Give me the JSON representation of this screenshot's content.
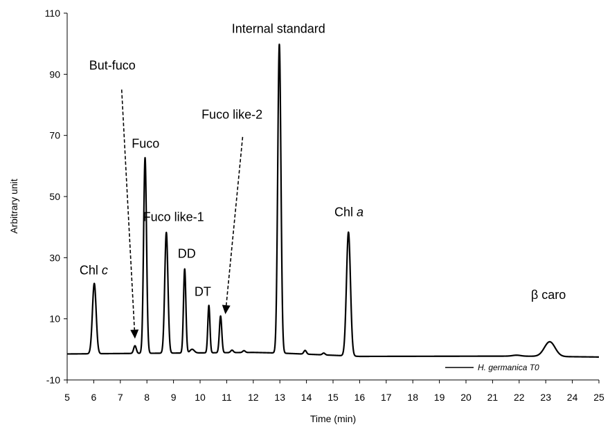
{
  "chart_data": {
    "type": "line",
    "xlabel": "Time  (min)",
    "ylabel": "Arbitrary unit",
    "xlim": [
      5,
      25
    ],
    "ylim": [
      -10,
      110
    ],
    "xticks": [
      5,
      6,
      7,
      8,
      9,
      10,
      11,
      12,
      13,
      14,
      15,
      16,
      17,
      18,
      19,
      20,
      21,
      22,
      23,
      24,
      25
    ],
    "yticks": [
      -10,
      10,
      30,
      50,
      70,
      90,
      110
    ],
    "grid": false,
    "legend_position": "bottom-right",
    "series": [
      {
        "name": "H. germanica T0",
        "color": "#000000",
        "baseline": [
          [
            5,
            -1.5
          ],
          [
            12,
            -1.0
          ],
          [
            13,
            -1.2
          ],
          [
            16,
            -2.3
          ],
          [
            22,
            -2.2
          ],
          [
            25,
            -2.5
          ]
        ],
        "peaks": [
          {
            "x": 6.02,
            "h": 23.0,
            "w": 0.07
          },
          {
            "x": 7.55,
            "h": 2.5,
            "w": 0.05
          },
          {
            "x": 7.93,
            "h": 64.0,
            "w": 0.055
          },
          {
            "x": 8.73,
            "h": 39.5,
            "w": 0.06
          },
          {
            "x": 9.42,
            "h": 27.5,
            "w": 0.045
          },
          {
            "x": 9.7,
            "h": 1.2,
            "w": 0.08
          },
          {
            "x": 10.33,
            "h": 15.5,
            "w": 0.04
          },
          {
            "x": 10.77,
            "h": 12.0,
            "w": 0.045
          },
          {
            "x": 11.2,
            "h": 0.8,
            "w": 0.05
          },
          {
            "x": 11.65,
            "h": 0.6,
            "w": 0.05
          },
          {
            "x": 12.98,
            "h": 101.0,
            "w": 0.06
          },
          {
            "x": 13.95,
            "h": 1.2,
            "w": 0.05
          },
          {
            "x": 14.65,
            "h": 0.6,
            "w": 0.05
          },
          {
            "x": 15.58,
            "h": 40.5,
            "w": 0.075
          },
          {
            "x": 21.9,
            "h": 0.3,
            "w": 0.15
          },
          {
            "x": 23.15,
            "h": 4.8,
            "w": 0.2
          }
        ]
      }
    ],
    "annotations": [
      {
        "label": "Chl",
        "italic_suffix": "c",
        "x": 6.0,
        "y": 24.5
      },
      {
        "label": "But-fuco",
        "x": 6.7,
        "y": 91.5,
        "arrow_from": [
          7.05,
          85
        ],
        "arrow_to": [
          7.55,
          3.5
        ]
      },
      {
        "label": "Fuco",
        "x": 7.95,
        "y": 66
      },
      {
        "label": "Fuco like-1",
        "x": 9.0,
        "y": 42
      },
      {
        "label": "DD",
        "x": 9.5,
        "y": 30
      },
      {
        "label": "DT",
        "x": 10.1,
        "y": 17.5
      },
      {
        "label": "Fuco like-2",
        "x": 11.2,
        "y": 75.5,
        "arrow_from": [
          11.6,
          69.5
        ],
        "arrow_to": [
          10.95,
          11.5
        ]
      },
      {
        "label": "Internal standard",
        "x": 12.95,
        "y": 103.5
      },
      {
        "label": "Chl",
        "italic_suffix": "a",
        "x": 15.6,
        "y": 43.5
      },
      {
        "label": "β caro",
        "x": 23.1,
        "y": 16.5
      }
    ]
  }
}
